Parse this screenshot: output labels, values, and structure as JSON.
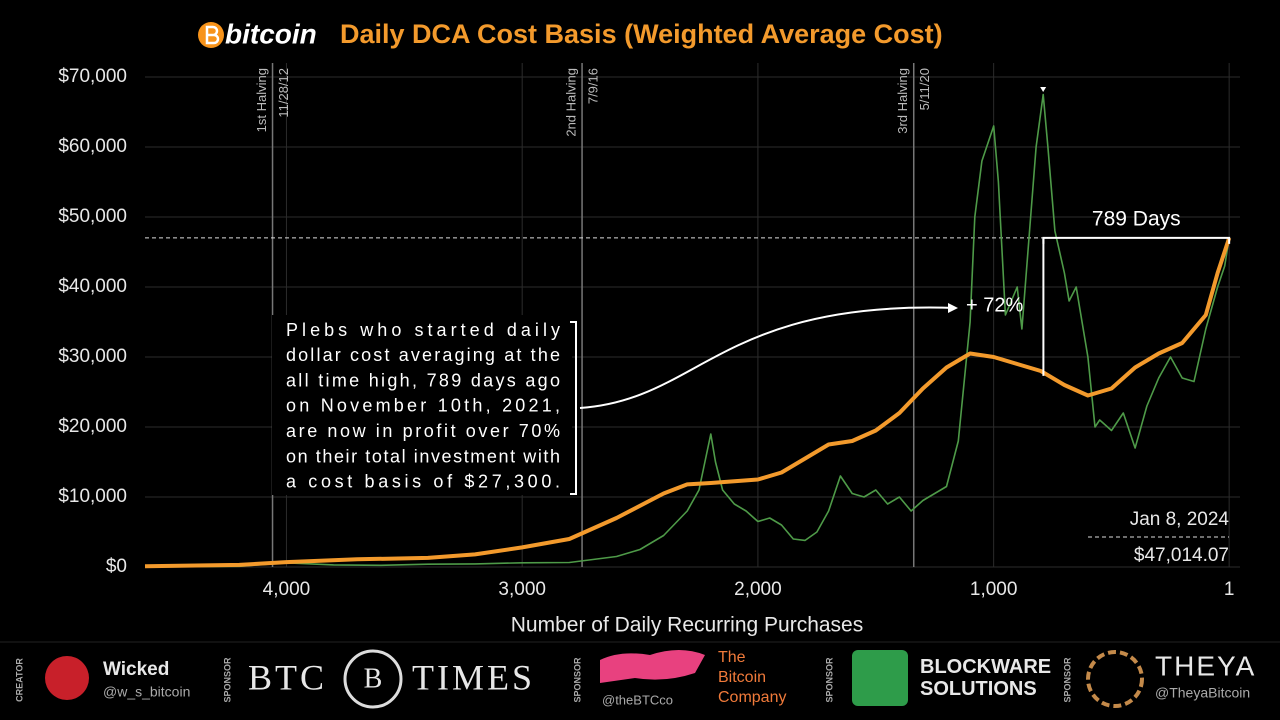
{
  "chart_data": {
    "type": "line",
    "title": "Daily DCA Cost Basis (Weighted Average Cost)",
    "brand": "bitcoin",
    "x_label": "Number of Daily Recurring Purchases",
    "xlim": [
      4600,
      -45
    ],
    "ylim": [
      0,
      72000
    ],
    "xticks": [
      {
        "value": 4000,
        "label": "4,000"
      },
      {
        "value": 3000,
        "label": "3,000"
      },
      {
        "value": 2000,
        "label": "2,000"
      },
      {
        "value": 1000,
        "label": "1,000"
      },
      1
    ],
    "yticks": [
      {
        "value": 0,
        "label": "$0"
      },
      {
        "value": 10000,
        "label": "$10,000"
      },
      {
        "value": 20000,
        "label": "$20,000"
      },
      {
        "value": 30000,
        "label": "$30,000"
      },
      {
        "value": 40000,
        "label": "$40,000"
      },
      {
        "value": 50000,
        "label": "$50,000"
      },
      {
        "value": 60000,
        "label": "$60,000"
      },
      {
        "value": 70000,
        "label": "$70,000"
      }
    ],
    "grid": true,
    "series": [
      {
        "color": "#4e9a48",
        "x": [
          4600,
          4200,
          4000,
          3800,
          3600,
          3400,
          3200,
          3000,
          2800,
          2600,
          2500,
          2400,
          2300,
          2250,
          2200,
          2180,
          2150,
          2100,
          2050,
          2000,
          1950,
          1900,
          1850,
          1800,
          1750,
          1700,
          1650,
          1600,
          1550,
          1500,
          1450,
          1400,
          1350,
          1300,
          1250,
          1200,
          1150,
          1100,
          1080,
          1050,
          1000,
          980,
          950,
          900,
          880,
          850,
          820,
          790,
          770,
          740,
          700,
          680,
          650,
          600,
          570,
          550,
          500,
          450,
          400,
          350,
          300,
          250,
          200,
          150,
          100,
          50,
          20,
          1
        ],
        "values": [
          10,
          100,
          600,
          300,
          250,
          400,
          450,
          600,
          650,
          1500,
          2500,
          4500,
          8000,
          11000,
          19000,
          15000,
          11000,
          9000,
          8000,
          6500,
          7000,
          6000,
          4000,
          3800,
          5000,
          8000,
          13000,
          10500,
          10000,
          11000,
          9000,
          10000,
          8000,
          9500,
          10500,
          11500,
          18000,
          35000,
          50000,
          58000,
          63000,
          55000,
          36000,
          40000,
          34000,
          47000,
          60000,
          67500,
          60000,
          48000,
          42000,
          38000,
          40000,
          30000,
          20000,
          21000,
          19500,
          22000,
          17000,
          23000,
          27000,
          30000,
          27000,
          26500,
          34000,
          40000,
          43000,
          47014
        ]
      },
      {
        "color": "#f39a2c",
        "x": [
          4600,
          4200,
          4000,
          3700,
          3400,
          3200,
          3000,
          2800,
          2600,
          2400,
          2300,
          2200,
          2000,
          1900,
          1800,
          1700,
          1600,
          1500,
          1400,
          1300,
          1200,
          1100,
          1000,
          900,
          800,
          700,
          600,
          500,
          400,
          300,
          200,
          100,
          50,
          1
        ],
        "values": [
          100,
          300,
          700,
          1100,
          1300,
          1800,
          2800,
          4000,
          7000,
          10500,
          11800,
          12000,
          12500,
          13500,
          15500,
          17500,
          18000,
          19500,
          22000,
          25500,
          28500,
          30500,
          30000,
          29000,
          28000,
          26000,
          24500,
          25500,
          28500,
          30500,
          32000,
          36000,
          42000,
          47014
        ]
      }
    ],
    "halvings": [
      {
        "x": 4059,
        "label": "1st Halving",
        "date": "11/28/12"
      },
      {
        "x": 2746,
        "label": "2nd Halving",
        "date": "7/9/16"
      },
      {
        "x": 1339,
        "label": "3rd Halving",
        "date": "5/11/20"
      }
    ],
    "current": {
      "y": 47014,
      "date": "Jan 8, 2024",
      "value_label": "$47,014.07"
    },
    "span": {
      "x_start": 789,
      "x_end": 1,
      "label": "789 Days"
    },
    "gain": {
      "x": 789,
      "y_low": 27300,
      "y_high": 47014,
      "label": "+ 72%"
    },
    "note": [
      "Plebs who started daily",
      "dollar cost averaging at the",
      "all time high, 789 days ago",
      "on November 10th, 2021,",
      "are now in profit over 70%",
      "on their total investment with",
      "a cost basis of $27,300."
    ]
  },
  "footer": {
    "creator": {
      "role": "CREATOR",
      "name": "Wicked",
      "handle": "@w_s_bitcoin"
    },
    "sponsors": [
      {
        "role": "SPONSOR",
        "left": "BTC",
        "right": "TIMES",
        "mark": "B"
      },
      {
        "role": "SPONSOR",
        "name": "The Bitcoin Company",
        "handle": "@theBTCco"
      },
      {
        "role": "SPONSOR",
        "name": "BLOCKWARE SOLUTIONS"
      },
      {
        "role": "SPONSOR",
        "name": "THEYA",
        "handle": "@TheyaBitcoin"
      }
    ]
  }
}
